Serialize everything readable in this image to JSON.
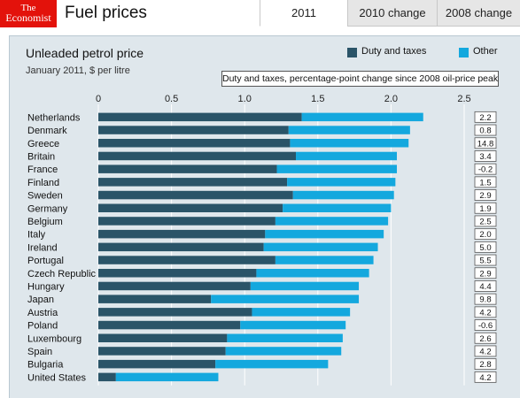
{
  "header": {
    "logo_line1": "The",
    "logo_line2": "Economist",
    "title": "Fuel prices",
    "tabs": [
      {
        "label": "2011",
        "active": true
      },
      {
        "label": "2010 change",
        "active": false
      },
      {
        "label": "2008 change",
        "active": false
      }
    ]
  },
  "colors": {
    "duty": "#2a5468",
    "other": "#14a8de",
    "brand": "#e3120b",
    "panel": "#dfe7ec"
  },
  "chart_data": {
    "type": "bar",
    "orientation": "horizontal",
    "stacked": true,
    "title": "Unleaded petrol price",
    "subtitle": "January 2011, $ per litre",
    "xlim": [
      0,
      2.5
    ],
    "x_ticks": [
      "0",
      "0.5",
      "1.0",
      "1.5",
      "2.0",
      "2.5"
    ],
    "x_tick_values": [
      0,
      0.5,
      1.0,
      1.5,
      2.0,
      2.5
    ],
    "legend_position": "top-right",
    "categories": [
      "Netherlands",
      "Denmark",
      "Greece",
      "Britain",
      "France",
      "Finland",
      "Sweden",
      "Germany",
      "Belgium",
      "Italy",
      "Ireland",
      "Portugal",
      "Czech Republic",
      "Hungary",
      "Japan",
      "Austria",
      "Poland",
      "Luxembourg",
      "Spain",
      "Bulgaria",
      "United States"
    ],
    "series": [
      {
        "name": "Duty and taxes",
        "values": [
          1.39,
          1.3,
          1.31,
          1.35,
          1.22,
          1.29,
          1.33,
          1.26,
          1.21,
          1.14,
          1.13,
          1.21,
          1.08,
          1.04,
          0.77,
          1.05,
          0.97,
          0.88,
          0.87,
          0.8,
          0.12
        ]
      },
      {
        "name": "Other",
        "values": [
          0.83,
          0.83,
          0.81,
          0.69,
          0.82,
          0.74,
          0.69,
          0.74,
          0.77,
          0.81,
          0.78,
          0.67,
          0.77,
          0.74,
          1.01,
          0.67,
          0.72,
          0.79,
          0.79,
          0.77,
          0.7
        ]
      }
    ],
    "annotation": {
      "label": "Duty and taxes, percentage-point change since 2008 oil-price peak",
      "values": [
        "2.2",
        "0.8",
        "14.8",
        "3.4",
        "-0.2",
        "1.5",
        "2.9",
        "1.9",
        "2.5",
        "2.0",
        "5.0",
        "5.5",
        "2.9",
        "4.4",
        "9.8",
        "4.2",
        "-0.6",
        "2.6",
        "4.2",
        "2.8",
        "4.2"
      ]
    }
  }
}
